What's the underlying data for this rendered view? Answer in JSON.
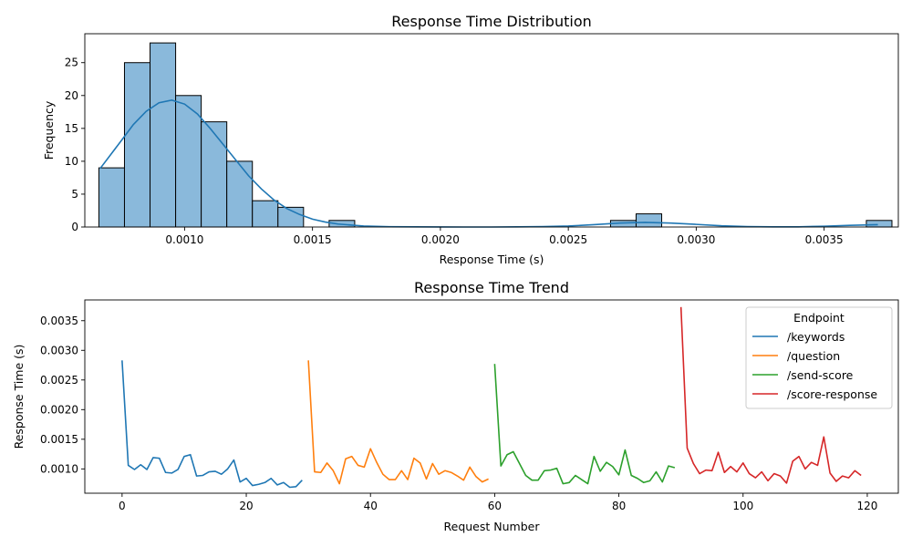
{
  "colors": {
    "hist_fill": "#8ab9db",
    "hist_edge": "#000000",
    "kde_line": "#1f77b4",
    "series": [
      "#1f77b4",
      "#ff7f0e",
      "#2ca02c",
      "#d62728"
    ]
  },
  "chart_data": [
    {
      "type": "bar",
      "subtype": "histogram-with-kde",
      "title": "Response Time Distribution",
      "xlabel": "Response Time (s)",
      "ylabel": "Frequency",
      "xlim": [
        0.00061,
        0.00379
      ],
      "ylim": [
        0,
        29.4
      ],
      "xticks": [
        0.001,
        0.0015,
        0.002,
        0.0025,
        0.003,
        0.0035
      ],
      "xtick_labels": [
        "0.0010",
        "0.0015",
        "0.0020",
        "0.0025",
        "0.0030",
        "0.0035"
      ],
      "yticks": [
        0,
        5,
        10,
        15,
        20,
        25
      ],
      "ytick_labels": [
        "0",
        "5",
        "10",
        "15",
        "20",
        "25"
      ],
      "grid": false,
      "bins": [
        {
          "x0": 0.000665,
          "x1": 0.000765,
          "count": 9
        },
        {
          "x0": 0.000765,
          "x1": 0.000865,
          "count": 25
        },
        {
          "x0": 0.000865,
          "x1": 0.000965,
          "count": 28
        },
        {
          "x0": 0.000965,
          "x1": 0.001065,
          "count": 20
        },
        {
          "x0": 0.001065,
          "x1": 0.001165,
          "count": 16
        },
        {
          "x0": 0.001165,
          "x1": 0.001265,
          "count": 10
        },
        {
          "x0": 0.001265,
          "x1": 0.001365,
          "count": 4
        },
        {
          "x0": 0.001365,
          "x1": 0.001465,
          "count": 3
        },
        {
          "x0": 0.001465,
          "x1": 0.001565,
          "count": 0
        },
        {
          "x0": 0.001565,
          "x1": 0.001665,
          "count": 1
        },
        {
          "x0": 0.002665,
          "x1": 0.002765,
          "count": 1
        },
        {
          "x0": 0.002765,
          "x1": 0.002865,
          "count": 2
        },
        {
          "x0": 0.003565,
          "x1": 0.003665,
          "count": 0
        },
        {
          "x0": 0.003665,
          "x1": 0.003765,
          "count": 1
        }
      ],
      "kde": {
        "x": [
          0.00067,
          0.00075,
          0.0008,
          0.00085,
          0.0009,
          0.00095,
          0.001,
          0.00105,
          0.0011,
          0.00115,
          0.0012,
          0.00125,
          0.0013,
          0.00135,
          0.0014,
          0.00145,
          0.0015,
          0.00155,
          0.0016,
          0.0017,
          0.0018,
          0.0019,
          0.002,
          0.0021,
          0.0022,
          0.0023,
          0.0024,
          0.0025,
          0.0026,
          0.0027,
          0.0028,
          0.0029,
          0.003,
          0.0031,
          0.0032,
          0.0033,
          0.0034,
          0.0035,
          0.0036,
          0.00371
        ],
        "y": [
          8.9,
          13.0,
          15.6,
          17.6,
          18.9,
          19.3,
          18.7,
          17.2,
          15.0,
          12.6,
          10.2,
          7.8,
          5.8,
          4.1,
          2.8,
          1.9,
          1.2,
          0.75,
          0.45,
          0.15,
          0.05,
          0.02,
          0.01,
          0.0,
          0.0,
          0.02,
          0.06,
          0.15,
          0.35,
          0.6,
          0.7,
          0.6,
          0.4,
          0.18,
          0.06,
          0.02,
          0.03,
          0.12,
          0.25,
          0.35
        ]
      }
    },
    {
      "type": "line",
      "title": "Response Time Trend",
      "xlabel": "Request Number",
      "ylabel": "Response Time (s)",
      "xlim": [
        -6,
        125
      ],
      "ylim": [
        0.00059,
        0.00385
      ],
      "xticks": [
        0,
        20,
        40,
        60,
        80,
        100,
        120
      ],
      "xtick_labels": [
        "0",
        "20",
        "40",
        "60",
        "80",
        "100",
        "120"
      ],
      "yticks": [
        0.001,
        0.0015,
        0.002,
        0.0025,
        0.003,
        0.0035
      ],
      "ytick_labels": [
        "0.0010",
        "0.0015",
        "0.0020",
        "0.0025",
        "0.0030",
        "0.0035"
      ],
      "grid": false,
      "legend": {
        "title": "Endpoint",
        "placement": "top-right"
      },
      "series": [
        {
          "name": "/keywords",
          "x": [
            0,
            1,
            2,
            3,
            4,
            5,
            6,
            7,
            8,
            9,
            10,
            11,
            12,
            13,
            14,
            15,
            16,
            17,
            18,
            19,
            20,
            21,
            22,
            23,
            24,
            25,
            26,
            27,
            28,
            29
          ],
          "values": [
            0.00283,
            0.00106,
            0.00099,
            0.00107,
            0.00099,
            0.00119,
            0.00118,
            0.00094,
            0.00093,
            0.00099,
            0.00121,
            0.00124,
            0.00088,
            0.00089,
            0.00095,
            0.00096,
            0.00091,
            0.001,
            0.00115,
            0.00078,
            0.00084,
            0.00072,
            0.00074,
            0.00077,
            0.00084,
            0.00073,
            0.00077,
            0.00069,
            0.0007,
            0.00081
          ]
        },
        {
          "name": "/question",
          "x": [
            30,
            31,
            32,
            33,
            34,
            35,
            36,
            37,
            38,
            39,
            40,
            41,
            42,
            43,
            44,
            45,
            46,
            47,
            48,
            49,
            50,
            51,
            52,
            53,
            54,
            55,
            56,
            57,
            58,
            59
          ],
          "values": [
            0.00283,
            0.00095,
            0.00094,
            0.0011,
            0.00097,
            0.00075,
            0.00117,
            0.00121,
            0.00106,
            0.00103,
            0.00134,
            0.00111,
            0.00091,
            0.00082,
            0.00082,
            0.00097,
            0.00082,
            0.00118,
            0.0011,
            0.00083,
            0.00109,
            0.00091,
            0.00097,
            0.00094,
            0.00088,
            0.00081,
            0.00103,
            0.00087,
            0.00078,
            0.00083
          ]
        },
        {
          "name": "/send-score",
          "x": [
            60,
            61,
            62,
            63,
            64,
            65,
            66,
            67,
            68,
            69,
            70,
            71,
            72,
            73,
            74,
            75,
            76,
            77,
            78,
            79,
            80,
            81,
            82,
            83,
            84,
            85,
            86,
            87,
            88,
            89
          ],
          "values": [
            0.00277,
            0.00105,
            0.00124,
            0.00129,
            0.00109,
            0.00089,
            0.00081,
            0.00081,
            0.00097,
            0.00098,
            0.00101,
            0.00075,
            0.00077,
            0.00089,
            0.00082,
            0.00075,
            0.00121,
            0.00096,
            0.00111,
            0.00104,
            0.0009,
            0.00132,
            0.00089,
            0.00084,
            0.00077,
            0.0008,
            0.00095,
            0.00078,
            0.00105,
            0.00102
          ]
        },
        {
          "name": "/score-response",
          "x": [
            90,
            91,
            92,
            93,
            94,
            95,
            96,
            97,
            98,
            99,
            100,
            101,
            102,
            103,
            104,
            105,
            106,
            107,
            108,
            109,
            110,
            111,
            112,
            113,
            114,
            115,
            116,
            117,
            118,
            119
          ],
          "values": [
            0.00373,
            0.00135,
            0.00109,
            0.00092,
            0.00098,
            0.00097,
            0.00128,
            0.00094,
            0.00104,
            0.00095,
            0.0011,
            0.00092,
            0.00085,
            0.00095,
            0.0008,
            0.00092,
            0.00088,
            0.00076,
            0.00113,
            0.00121,
            0.001,
            0.00111,
            0.00106,
            0.00154,
            0.00093,
            0.00079,
            0.00088,
            0.00085,
            0.00097,
            0.00089
          ]
        }
      ]
    }
  ]
}
